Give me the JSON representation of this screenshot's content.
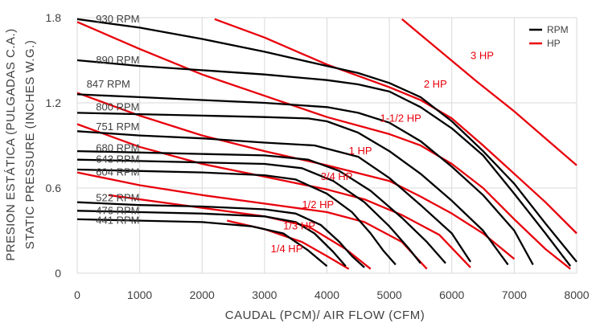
{
  "chart_data": {
    "type": "line",
    "title": "",
    "xlabel": "CAUDAL (PCM)/ AIR FLOW (CFM)",
    "ylabel_line1": "PRESION ESTÁTICA (PULGADAS C.A.)",
    "ylabel_line2": "STATIC PRESSURE  (INCHES W.G.)",
    "xlim": [
      0,
      8000
    ],
    "ylim": [
      0,
      1.8
    ],
    "x_ticks": [
      "0",
      "1000",
      "2000",
      "3000",
      "4000",
      "5000",
      "6000",
      "7000",
      "8000"
    ],
    "y_ticks": [
      "0",
      "0.6",
      "1.2",
      "1.8"
    ],
    "y_tick_values": [
      0,
      0.6,
      1.2,
      1.8
    ],
    "grid": true,
    "legend_position": "top-right",
    "legend": [
      {
        "name": "RPM",
        "color": "#000000"
      },
      {
        "name": "HP",
        "color": "#e8000b"
      }
    ],
    "rpm_series": [
      {
        "label": "930 RPM",
        "points": [
          [
            0,
            1.79
          ],
          [
            1000,
            1.73
          ],
          [
            2000,
            1.65
          ],
          [
            3000,
            1.56
          ],
          [
            4000,
            1.46
          ],
          [
            4500,
            1.41
          ],
          [
            5000,
            1.34
          ],
          [
            5500,
            1.24
          ],
          [
            6000,
            1.07
          ],
          [
            6500,
            0.86
          ],
          [
            7000,
            0.63
          ],
          [
            7500,
            0.35
          ],
          [
            8000,
            0.08
          ]
        ]
      },
      {
        "label": "890 RPM",
        "points": [
          [
            0,
            1.5
          ],
          [
            1000,
            1.46
          ],
          [
            2000,
            1.43
          ],
          [
            3000,
            1.4
          ],
          [
            4000,
            1.36
          ],
          [
            4500,
            1.33
          ],
          [
            5000,
            1.28
          ],
          [
            5500,
            1.17
          ],
          [
            6000,
            1.02
          ],
          [
            6500,
            0.83
          ],
          [
            7000,
            0.56
          ],
          [
            7500,
            0.28
          ],
          [
            7900,
            0.05
          ]
        ]
      },
      {
        "label": "847 RPM",
        "points": [
          [
            0,
            1.26
          ],
          [
            1000,
            1.24
          ],
          [
            2000,
            1.22
          ],
          [
            3000,
            1.2
          ],
          [
            4000,
            1.17
          ],
          [
            4500,
            1.13
          ],
          [
            5000,
            1.06
          ],
          [
            5500,
            0.93
          ],
          [
            6000,
            0.75
          ],
          [
            6500,
            0.55
          ],
          [
            7000,
            0.3
          ],
          [
            7300,
            0.06
          ]
        ]
      },
      {
        "label": "800 RPM",
        "points": [
          [
            0,
            1.13
          ],
          [
            1000,
            1.12
          ],
          [
            2000,
            1.11
          ],
          [
            3000,
            1.1
          ],
          [
            3700,
            1.09
          ],
          [
            4000,
            1.07
          ],
          [
            4500,
            0.99
          ],
          [
            5000,
            0.86
          ],
          [
            5500,
            0.7
          ],
          [
            6000,
            0.51
          ],
          [
            6500,
            0.3
          ],
          [
            6900,
            0.06
          ]
        ]
      },
      {
        "label": "751 RPM",
        "points": [
          [
            0,
            1.0
          ],
          [
            1000,
            0.97
          ],
          [
            2000,
            0.95
          ],
          [
            3000,
            0.92
          ],
          [
            3800,
            0.9
          ],
          [
            4500,
            0.82
          ],
          [
            5000,
            0.67
          ],
          [
            5500,
            0.48
          ],
          [
            6000,
            0.28
          ],
          [
            6300,
            0.08
          ]
        ]
      },
      {
        "label": "680 RPM",
        "points": [
          [
            0,
            0.86
          ],
          [
            1000,
            0.85
          ],
          [
            2000,
            0.84
          ],
          [
            3000,
            0.83
          ],
          [
            3700,
            0.8
          ],
          [
            4200,
            0.72
          ],
          [
            4700,
            0.58
          ],
          [
            5200,
            0.39
          ],
          [
            5600,
            0.22
          ],
          [
            5900,
            0.07
          ]
        ]
      },
      {
        "label": "643 RPM",
        "points": [
          [
            0,
            0.8
          ],
          [
            1000,
            0.79
          ],
          [
            2000,
            0.78
          ],
          [
            3000,
            0.77
          ],
          [
            3600,
            0.74
          ],
          [
            4100,
            0.65
          ],
          [
            4600,
            0.5
          ],
          [
            5000,
            0.33
          ],
          [
            5300,
            0.18
          ],
          [
            5500,
            0.07
          ]
        ]
      },
      {
        "label": "604 RPM",
        "points": [
          [
            0,
            0.73
          ],
          [
            1000,
            0.72
          ],
          [
            2000,
            0.71
          ],
          [
            3000,
            0.69
          ],
          [
            3500,
            0.66
          ],
          [
            4000,
            0.56
          ],
          [
            4400,
            0.43
          ],
          [
            4700,
            0.28
          ],
          [
            4900,
            0.16
          ],
          [
            5100,
            0.06
          ]
        ]
      },
      {
        "label": "522 RPM",
        "points": [
          [
            0,
            0.5
          ],
          [
            1000,
            0.48
          ],
          [
            2000,
            0.47
          ],
          [
            3000,
            0.45
          ],
          [
            3500,
            0.42
          ],
          [
            3900,
            0.34
          ],
          [
            4200,
            0.22
          ],
          [
            4400,
            0.12
          ],
          [
            4600,
            0.04
          ]
        ]
      },
      {
        "label": "476 RPM",
        "points": [
          [
            0,
            0.44
          ],
          [
            1000,
            0.43
          ],
          [
            2000,
            0.42
          ],
          [
            3000,
            0.4
          ],
          [
            3500,
            0.36
          ],
          [
            3800,
            0.28
          ],
          [
            4100,
            0.15
          ],
          [
            4300,
            0.05
          ]
        ]
      },
      {
        "label": "441 RPM",
        "points": [
          [
            0,
            0.38
          ],
          [
            1000,
            0.37
          ],
          [
            2000,
            0.36
          ],
          [
            2800,
            0.33
          ],
          [
            3300,
            0.28
          ],
          [
            3700,
            0.16
          ],
          [
            4000,
            0.05
          ]
        ]
      }
    ],
    "hp_series": [
      {
        "label": "3 HP",
        "points": [
          [
            5200,
            1.79
          ],
          [
            5800,
            1.57
          ],
          [
            6400,
            1.35
          ],
          [
            7000,
            1.14
          ],
          [
            7500,
            0.95
          ],
          [
            8000,
            0.76
          ]
        ]
      },
      {
        "label": "2 HP",
        "points": [
          [
            2200,
            1.79
          ],
          [
            3000,
            1.66
          ],
          [
            4000,
            1.47
          ],
          [
            5000,
            1.31
          ],
          [
            5500,
            1.22
          ],
          [
            6000,
            1.09
          ],
          [
            6500,
            0.9
          ],
          [
            7000,
            0.7
          ],
          [
            7500,
            0.5
          ],
          [
            8000,
            0.28
          ]
        ]
      },
      {
        "label": "1-1/2 HP",
        "points": [
          [
            0,
            1.77
          ],
          [
            1000,
            1.58
          ],
          [
            2000,
            1.4
          ],
          [
            3000,
            1.25
          ],
          [
            4000,
            1.1
          ],
          [
            5000,
            0.98
          ],
          [
            5500,
            0.9
          ],
          [
            6000,
            0.77
          ],
          [
            6500,
            0.6
          ],
          [
            7000,
            0.38
          ],
          [
            7500,
            0.17
          ],
          [
            7900,
            0.03
          ]
        ]
      },
      {
        "label": "1 HP",
        "points": [
          [
            0,
            1.27
          ],
          [
            1000,
            1.11
          ],
          [
            2000,
            0.97
          ],
          [
            3000,
            0.86
          ],
          [
            4000,
            0.76
          ],
          [
            5000,
            0.65
          ],
          [
            5500,
            0.54
          ],
          [
            6000,
            0.42
          ],
          [
            6500,
            0.28
          ],
          [
            7000,
            0.1
          ]
        ]
      },
      {
        "label": "3/4 HP",
        "points": [
          [
            0,
            1.05
          ],
          [
            1000,
            0.89
          ],
          [
            2000,
            0.77
          ],
          [
            3000,
            0.68
          ],
          [
            4000,
            0.59
          ],
          [
            4600,
            0.52
          ],
          [
            5200,
            0.41
          ],
          [
            5800,
            0.27
          ],
          [
            6300,
            0.04
          ]
        ]
      },
      {
        "label": "1/2 HP",
        "points": [
          [
            0,
            0.71
          ],
          [
            1000,
            0.62
          ],
          [
            2000,
            0.55
          ],
          [
            3000,
            0.49
          ],
          [
            4000,
            0.43
          ],
          [
            4600,
            0.36
          ],
          [
            5200,
            0.22
          ],
          [
            5600,
            0.03
          ]
        ]
      },
      {
        "label": "1/3 HP",
        "points": [
          [
            500,
            0.55
          ],
          [
            1500,
            0.49
          ],
          [
            2500,
            0.43
          ],
          [
            3000,
            0.4
          ],
          [
            3700,
            0.33
          ],
          [
            4300,
            0.17
          ],
          [
            4700,
            0.03
          ]
        ]
      },
      {
        "label": "1/4 HP",
        "points": [
          [
            2400,
            0.37
          ],
          [
            3000,
            0.31
          ],
          [
            3600,
            0.22
          ],
          [
            4000,
            0.12
          ],
          [
            4350,
            0.03
          ]
        ]
      }
    ],
    "rpm_label_positions": [
      {
        "label": "930 RPM",
        "x": 300,
        "y": 1.79
      },
      {
        "label": "890 RPM",
        "x": 300,
        "y": 1.5
      },
      {
        "label": "847 RPM",
        "x": 150,
        "y": 1.33
      },
      {
        "label": "800 RPM",
        "x": 300,
        "y": 1.17
      },
      {
        "label": "751 RPM",
        "x": 300,
        "y": 1.03
      },
      {
        "label": "680 RPM",
        "x": 300,
        "y": 0.88
      },
      {
        "label": "643 RPM",
        "x": 300,
        "y": 0.8
      },
      {
        "label": "604 RPM",
        "x": 300,
        "y": 0.71
      },
      {
        "label": "522 RPM",
        "x": 300,
        "y": 0.53
      },
      {
        "label": "476 RPM",
        "x": 300,
        "y": 0.44
      },
      {
        "label": "441 RPM",
        "x": 300,
        "y": 0.37
      }
    ],
    "hp_label_positions": [
      {
        "label": "3 HP",
        "x": 6300,
        "y": 1.53
      },
      {
        "label": "2 HP",
        "x": 5550,
        "y": 1.33
      },
      {
        "label": "1-1/2 HP",
        "x": 4850,
        "y": 1.09
      },
      {
        "label": "1 HP",
        "x": 4350,
        "y": 0.86
      },
      {
        "label": "3/4 HP",
        "x": 3900,
        "y": 0.68
      },
      {
        "label": "1/2 HP",
        "x": 3600,
        "y": 0.48
      },
      {
        "label": "1/3 HP",
        "x": 3300,
        "y": 0.33
      },
      {
        "label": "1/4 HP",
        "x": 3100,
        "y": 0.17
      }
    ]
  }
}
